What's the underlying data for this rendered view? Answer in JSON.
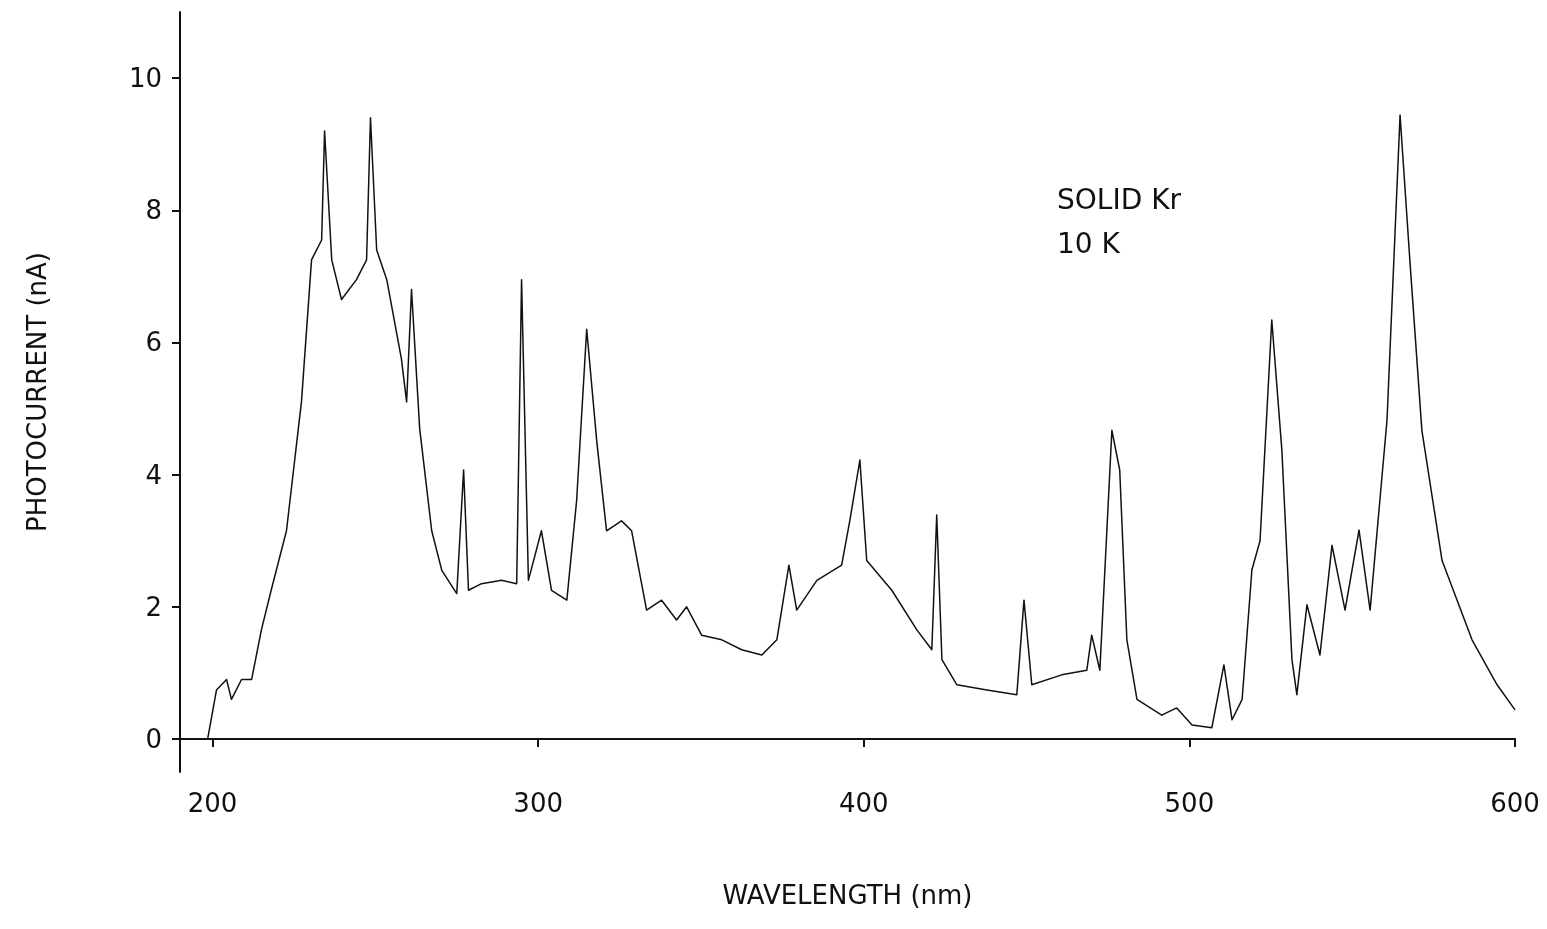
{
  "chart_data": {
    "type": "line",
    "xlabel": "WAVELENGTH (nm)",
    "ylabel": "PHOTOCURRENT (nA)",
    "annotations": [
      "SOLID Kr",
      "10 K"
    ],
    "xlim": [
      190,
      600
    ],
    "xticks": [
      200,
      300,
      400,
      500,
      600
    ],
    "ylim": [
      -0.5,
      11
    ],
    "yticks": [
      0,
      2,
      4,
      6,
      8,
      10
    ],
    "grid": false,
    "marker": "none",
    "line_style": "solid",
    "series": [
      {
        "color": "#111111",
        "x": [
          198.5,
          201.2,
          204.3,
          205.8,
          208.9,
          212,
          215,
          218,
          222.7,
          227.3,
          230.4,
          233.5,
          234.4,
          236.6,
          239.6,
          244.2,
          247.3,
          248.5,
          250.4,
          253.5,
          258,
          259.6,
          261.1,
          263.6,
          267.3,
          270.4,
          275,
          277.1,
          278.6,
          282.6,
          288.8,
          293.4,
          294.9,
          297,
          301,
          304.1,
          308.8,
          311.8,
          314.9,
          318,
          321,
          325.6,
          328.7,
          333.3,
          337.9,
          342.5,
          345.6,
          350.2,
          356.4,
          362.5,
          368.7,
          373.3,
          377,
          379.4,
          385.6,
          393.2,
          395.7,
          398.8,
          400.9,
          408.6,
          416.3,
          420.9,
          422.4,
          424,
          428.6,
          437.8,
          447,
          449.2,
          451.6,
          460.8,
          468.5,
          470,
          472.5,
          476.2,
          478.6,
          480.8,
          483.9,
          491.5,
          496.1,
          500.8,
          506.9,
          510.6,
          513.1,
          516.2,
          519.2,
          521.7,
          525.3,
          528.4,
          531.5,
          533,
          536.1,
          540.1,
          543.8,
          547.8,
          552.1,
          555.5,
          560.7,
          564.7,
          567.7,
          571.4,
          577.6,
          586.8,
          594.5,
          600
        ],
        "values": [
          0,
          0.74,
          0.9,
          0.6,
          0.9,
          0.9,
          1.65,
          2.25,
          3.15,
          5.1,
          7.25,
          7.55,
          9.2,
          7.25,
          6.65,
          6.95,
          7.25,
          9.4,
          7.4,
          6.95,
          5.75,
          5.1,
          6.8,
          4.7,
          3.15,
          2.55,
          2.2,
          4.07,
          2.25,
          2.35,
          2.4,
          2.35,
          6.95,
          2.4,
          3.15,
          2.25,
          2.1,
          3.6,
          6.2,
          4.5,
          3.15,
          3.3,
          3.15,
          1.95,
          2.1,
          1.8,
          2.0,
          1.57,
          1.5,
          1.35,
          1.27,
          1.5,
          2.63,
          1.95,
          2.4,
          2.63,
          3.3,
          4.22,
          2.7,
          2.25,
          1.65,
          1.35,
          3.39,
          1.2,
          0.82,
          0.74,
          0.67,
          2.1,
          0.82,
          0.97,
          1.04,
          1.57,
          1.04,
          4.67,
          4.07,
          1.5,
          0.6,
          0.36,
          0.47,
          0.21,
          0.17,
          1.12,
          0.29,
          0.6,
          2.56,
          3.0,
          6.34,
          4.37,
          1.2,
          0.67,
          2.03,
          1.27,
          2.93,
          1.95,
          3.16,
          1.95,
          4.83,
          9.44,
          7.25,
          4.67,
          2.7,
          1.5,
          0.82,
          0.44
        ]
      }
    ]
  }
}
